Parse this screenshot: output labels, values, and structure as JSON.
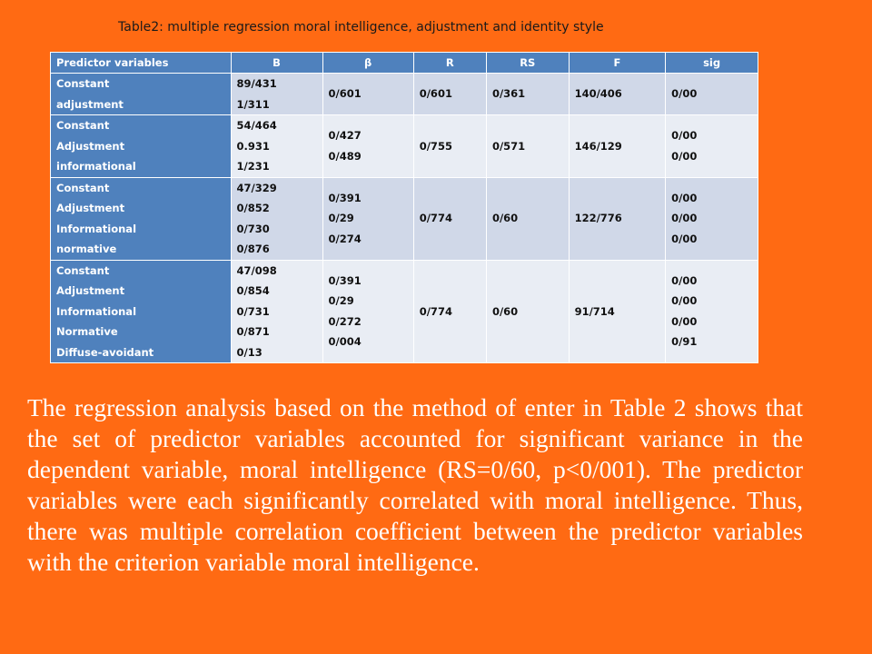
{
  "title": "Table2: multiple regression moral intelligence, adjustment and identity style",
  "table": {
    "headers": [
      "Predictor variables",
      "B",
      "β",
      "R",
      "RS",
      "F",
      "sig"
    ],
    "rows": [
      {
        "predictors": [
          "Constant",
          "adjustment"
        ],
        "B": [
          "89/431",
          "1/311"
        ],
        "beta": [
          "0/601"
        ],
        "R": [
          "0/601"
        ],
        "RS": [
          "0/361"
        ],
        "F": [
          "140/406"
        ],
        "sig": [
          "0/00"
        ]
      },
      {
        "predictors": [
          "Constant",
          "Adjustment",
          "informational"
        ],
        "B": [
          "54/464",
          "0.931",
          "1/231"
        ],
        "beta": [
          "0/427",
          "0/489"
        ],
        "R": [
          "0/755"
        ],
        "RS": [
          "0/571"
        ],
        "F": [
          "146/129"
        ],
        "sig": [
          "0/00",
          "0/00"
        ]
      },
      {
        "predictors": [
          "Constant",
          "Adjustment",
          "Informational",
          "normative"
        ],
        "B": [
          "47/329",
          "0/852",
          "0/730",
          "0/876"
        ],
        "beta": [
          "0/391",
          "0/29",
          "0/274"
        ],
        "R": [
          "0/774"
        ],
        "RS": [
          "0/60"
        ],
        "F": [
          "122/776"
        ],
        "sig": [
          "0/00",
          "0/00",
          "0/00"
        ]
      },
      {
        "predictors": [
          "Constant",
          "Adjustment",
          "Informational",
          "Normative",
          "Diffuse-avoidant"
        ],
        "B": [
          "47/098",
          "0/854",
          "0/731",
          "0/871",
          "0/13"
        ],
        "beta": [
          "0/391",
          "0/29",
          "0/272",
          "0/004"
        ],
        "R": [
          "0/774"
        ],
        "RS": [
          "0/60"
        ],
        "F": [
          "91/714"
        ],
        "sig": [
          "0/00",
          "0/00",
          "0/00",
          "0/91"
        ]
      }
    ]
  },
  "paragraph": "The regression analysis based on the method of enter in Table 2 shows that the set of predictor variables accounted for significant variance in the dependent variable, moral intelligence (RS=0/60, p<0/001). The predictor variables were each significantly correlated with moral intelligence. Thus, there was multiple correlation coefficient between the predictor variables with the criterion variable moral intelligence."
}
